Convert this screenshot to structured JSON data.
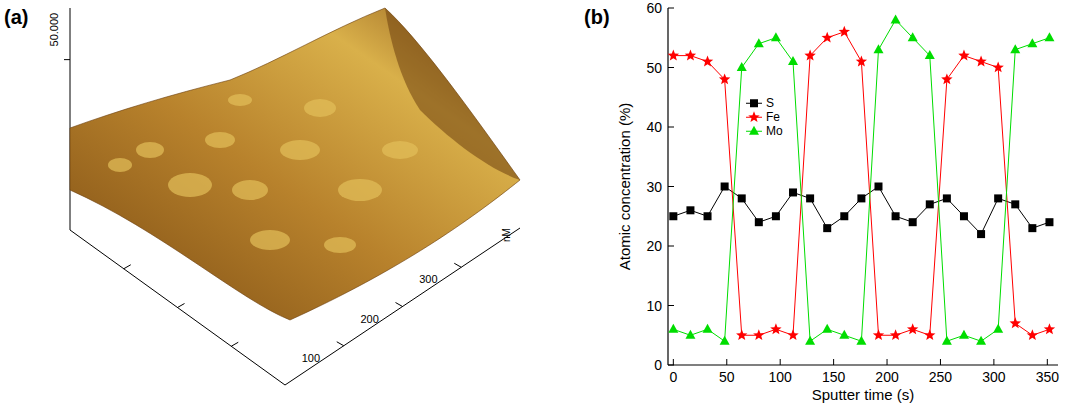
{
  "chart_data": [
    {
      "type": "surface",
      "panel": "(a)",
      "xlabel": "nM",
      "xlim": [
        0,
        400
      ],
      "xticks": [
        100,
        200,
        300
      ],
      "zlim": [
        -50,
        85
      ],
      "zticks": [
        {
          "value": 50,
          "label": "50.000"
        }
      ]
    },
    {
      "type": "line",
      "panel": "(b)",
      "xlabel": "Sputter time (s)",
      "ylabel": "Atomic concentration (%)",
      "x": [
        0,
        16,
        32,
        48,
        64,
        80,
        96,
        112,
        128,
        144,
        160,
        176,
        192,
        208,
        224,
        240,
        256,
        272,
        288,
        304,
        320,
        336,
        352
      ],
      "series": [
        {
          "name": "S",
          "color": "#000000",
          "marker": "square",
          "line_style": "solid",
          "values": [
            25,
            26,
            25,
            30,
            28,
            24,
            25,
            29,
            28,
            23,
            25,
            28,
            30,
            25,
            24,
            27,
            28,
            25,
            22,
            28,
            27,
            23,
            24
          ]
        },
        {
          "name": "Fe",
          "color": "#ff0000",
          "marker": "star",
          "line_style": "solid",
          "values": [
            52,
            52,
            51,
            48,
            5,
            5,
            6,
            5,
            52,
            55,
            56,
            51,
            5,
            5,
            6,
            5,
            48,
            52,
            51,
            50,
            7,
            5,
            6
          ]
        },
        {
          "name": "Mo",
          "color": "#00dd00",
          "marker": "triangle",
          "line_style": "solid",
          "values": [
            6,
            5,
            6,
            4,
            50,
            54,
            55,
            51,
            4,
            6,
            5,
            4,
            53,
            58,
            55,
            52,
            4,
            5,
            4,
            6,
            53,
            54,
            55
          ]
        }
      ],
      "xlim": [
        -5,
        360
      ],
      "xticks": [
        0,
        50,
        100,
        150,
        200,
        250,
        300,
        350
      ],
      "ylim": [
        0,
        60
      ],
      "yticks": [
        0,
        10,
        20,
        30,
        40,
        50,
        60
      ],
      "legend": "center",
      "grid": false
    }
  ]
}
